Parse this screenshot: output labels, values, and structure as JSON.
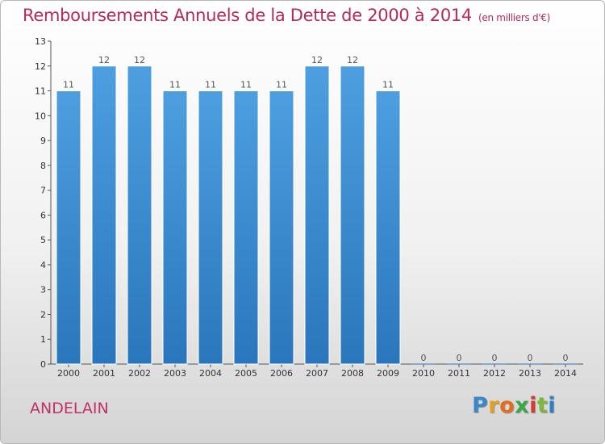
{
  "chart_data": {
    "type": "bar",
    "title": "Remboursements Annuels de la Dette de 2000 à 2014",
    "subtitle": "(en milliers d'€)",
    "categories": [
      "2000",
      "2001",
      "2002",
      "2003",
      "2004",
      "2005",
      "2006",
      "2007",
      "2008",
      "2009",
      "2010",
      "2011",
      "2012",
      "2013",
      "2014"
    ],
    "values": [
      11,
      12,
      12,
      11,
      11,
      11,
      11,
      12,
      12,
      11,
      0,
      0,
      0,
      0,
      0
    ],
    "data_labels": [
      "11",
      "12",
      "12",
      "11",
      "11",
      "11",
      "11",
      "12",
      "12",
      "11",
      "0",
      "0",
      "0",
      "0",
      "0"
    ],
    "ylim": [
      0,
      13
    ],
    "yticks": [
      0,
      1,
      2,
      3,
      4,
      5,
      6,
      7,
      8,
      9,
      10,
      11,
      12,
      13
    ],
    "grid": false,
    "bar_color": "#4d9fe0",
    "bar_color_dark": "#2a76bc"
  },
  "commune": "ANDELAIN",
  "logo": {
    "letters": [
      "P",
      "r",
      "o",
      "x",
      "i",
      "t",
      "i"
    ]
  }
}
